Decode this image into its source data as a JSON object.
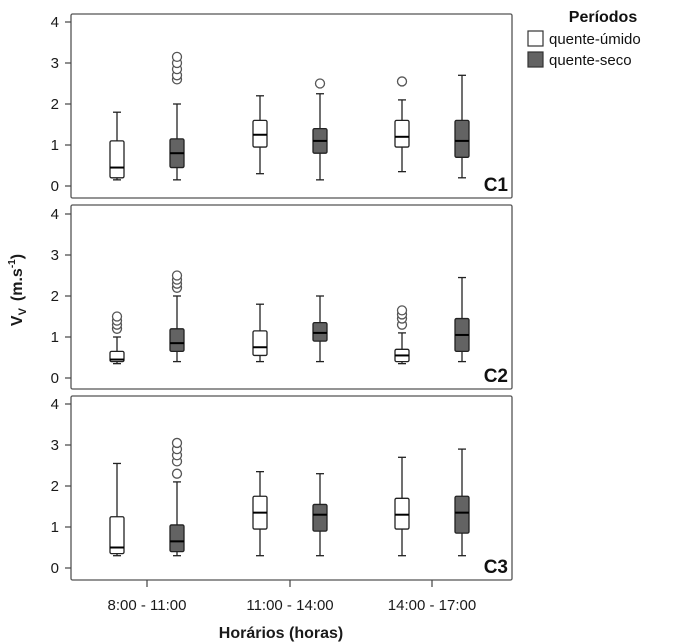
{
  "chart_data": {
    "type": "box",
    "ylabel_main": "V",
    "ylabel_sub": "V",
    "ylabel_unit": "(m.s",
    "ylabel_sup": "-1",
    "ylabel_close": ")",
    "xlabel": "Horários (horas)",
    "categories": [
      "8:00 - 11:00",
      "11:00 - 14:00",
      "14:00 - 17:00"
    ],
    "yticks": [
      "0",
      "1",
      "2",
      "3",
      "4"
    ],
    "ylim": [
      0,
      4
    ],
    "legend": {
      "title": "Períodos",
      "entries": [
        {
          "name": "quente-úmido",
          "fill": "#ffffff"
        },
        {
          "name": "quente-seco",
          "fill": "#636363"
        }
      ]
    },
    "colors": {
      "humid": "#ffffff",
      "dry": "#636363",
      "stroke": "#222222"
    },
    "panels": [
      {
        "label": "C1",
        "boxes": [
          {
            "category": "8:00 - 11:00",
            "series": "quente-úmido",
            "min": 0.15,
            "q1": 0.2,
            "median": 0.45,
            "q3": 1.1,
            "max": 1.8,
            "outliers": []
          },
          {
            "category": "8:00 - 11:00",
            "series": "quente-seco",
            "min": 0.15,
            "q1": 0.45,
            "median": 0.8,
            "q3": 1.15,
            "max": 2.0,
            "outliers": [
              2.6,
              2.7,
              2.85,
              3.0,
              3.15
            ]
          },
          {
            "category": "11:00 - 14:00",
            "series": "quente-úmido",
            "min": 0.3,
            "q1": 0.95,
            "median": 1.25,
            "q3": 1.6,
            "max": 2.2,
            "outliers": []
          },
          {
            "category": "11:00 - 14:00",
            "series": "quente-seco",
            "min": 0.15,
            "q1": 0.8,
            "median": 1.1,
            "q3": 1.4,
            "max": 2.25,
            "outliers": [
              2.5
            ]
          },
          {
            "category": "14:00 - 17:00",
            "series": "quente-úmido",
            "min": 0.35,
            "q1": 0.95,
            "median": 1.2,
            "q3": 1.6,
            "max": 2.1,
            "outliers": [
              2.55
            ]
          },
          {
            "category": "14:00 - 17:00",
            "series": "quente-seco",
            "min": 0.2,
            "q1": 0.7,
            "median": 1.1,
            "q3": 1.6,
            "max": 2.7,
            "outliers": []
          }
        ]
      },
      {
        "label": "C2",
        "boxes": [
          {
            "category": "8:00 - 11:00",
            "series": "quente-úmido",
            "min": 0.35,
            "q1": 0.4,
            "median": 0.45,
            "q3": 0.65,
            "max": 1.0,
            "outliers": [
              1.2,
              1.3,
              1.4,
              1.5
            ]
          },
          {
            "category": "8:00 - 11:00",
            "series": "quente-seco",
            "min": 0.4,
            "q1": 0.65,
            "median": 0.85,
            "q3": 1.2,
            "max": 2.0,
            "outliers": [
              2.2,
              2.3,
              2.4,
              2.5
            ]
          },
          {
            "category": "11:00 - 14:00",
            "series": "quente-úmido",
            "min": 0.4,
            "q1": 0.55,
            "median": 0.75,
            "q3": 1.15,
            "max": 1.8,
            "outliers": []
          },
          {
            "category": "11:00 - 14:00",
            "series": "quente-seco",
            "min": 0.4,
            "q1": 0.9,
            "median": 1.1,
            "q3": 1.35,
            "max": 2.0,
            "outliers": []
          },
          {
            "category": "14:00 - 17:00",
            "series": "quente-úmido",
            "min": 0.35,
            "q1": 0.4,
            "median": 0.55,
            "q3": 0.7,
            "max": 1.1,
            "outliers": [
              1.3,
              1.45,
              1.55,
              1.65
            ]
          },
          {
            "category": "14:00 - 17:00",
            "series": "quente-seco",
            "min": 0.4,
            "q1": 0.65,
            "median": 1.05,
            "q3": 1.45,
            "max": 2.45,
            "outliers": []
          }
        ]
      },
      {
        "label": "C3",
        "boxes": [
          {
            "category": "8:00 - 11:00",
            "series": "quente-úmido",
            "min": 0.3,
            "q1": 0.35,
            "median": 0.5,
            "q3": 1.25,
            "max": 2.55,
            "outliers": []
          },
          {
            "category": "8:00 - 11:00",
            "series": "quente-seco",
            "min": 0.3,
            "q1": 0.4,
            "median": 0.65,
            "q3": 1.05,
            "max": 2.1,
            "outliers": [
              2.3,
              2.6,
              2.75,
              2.9,
              3.05
            ]
          },
          {
            "category": "11:00 - 14:00",
            "series": "quente-úmido",
            "min": 0.3,
            "q1": 0.95,
            "median": 1.35,
            "q3": 1.75,
            "max": 2.35,
            "outliers": []
          },
          {
            "category": "11:00 - 14:00",
            "series": "quente-seco",
            "min": 0.3,
            "q1": 0.9,
            "median": 1.3,
            "q3": 1.55,
            "max": 2.3,
            "outliers": []
          },
          {
            "category": "14:00 - 17:00",
            "series": "quente-úmido",
            "min": 0.3,
            "q1": 0.95,
            "median": 1.3,
            "q3": 1.7,
            "max": 2.7,
            "outliers": []
          },
          {
            "category": "14:00 - 17:00",
            "series": "quente-seco",
            "min": 0.3,
            "q1": 0.85,
            "median": 1.35,
            "q3": 1.75,
            "max": 2.9,
            "outliers": []
          }
        ]
      }
    ]
  }
}
